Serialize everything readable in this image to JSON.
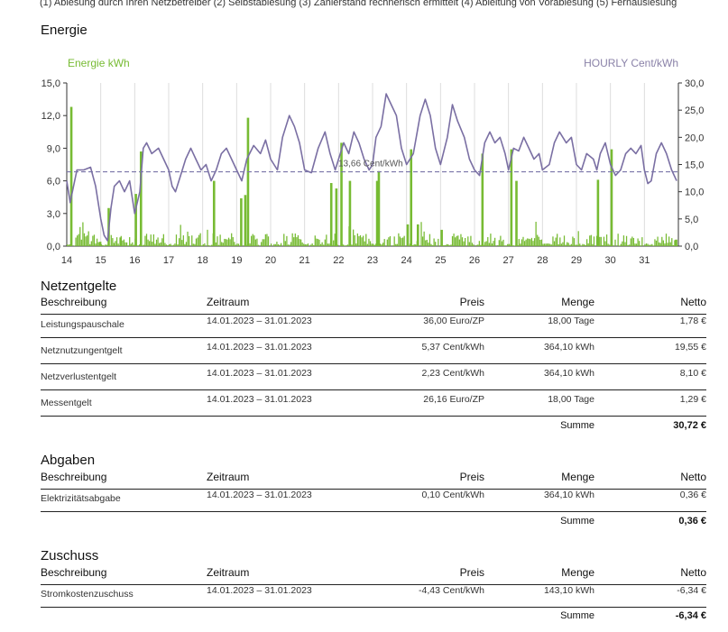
{
  "footnote": "(1) Ablesung durch Ihren Netzbetreiber (2) Selbstablesung (3) Zählerstand rechnerisch ermittelt (4) Ableitung von Vorablesung (5) Fernauslesung",
  "energy": {
    "title": "Energie"
  },
  "chart_data": {
    "type": "bar+line",
    "left_axis_label": "Energie kWh",
    "right_axis_label": "HOURLY Cent/kWh",
    "left_ticks": [
      "0,0",
      "3,0",
      "6,0",
      "9,0",
      "12,0",
      "15,0"
    ],
    "right_ticks": [
      "0,0",
      "5,0",
      "10,0",
      "15,0",
      "20,0",
      "25,0",
      "30,0"
    ],
    "ylim_left": [
      0,
      15
    ],
    "ylim_right": [
      0,
      30
    ],
    "x_labels": [
      "14",
      "15",
      "16",
      "17",
      "18",
      "19",
      "20",
      "21",
      "22",
      "23",
      "24",
      "25",
      "26",
      "27",
      "28",
      "29",
      "30",
      "31"
    ],
    "grid": "vertical",
    "average_price": 13.66,
    "average_label": "13,66 Cent/kWh",
    "colors": {
      "bars": "#77bb33",
      "line": "#7a6fa3",
      "average": "#7a75a8",
      "left_label": "#77bb33",
      "right_label": "#8a82a8"
    },
    "series": [
      {
        "name": "Energie kWh",
        "type": "bar",
        "unit": "kWh",
        "description": "hourly consumption, 14.01.–31.01.2023; most hours 0–2 kWh with daily spikes",
        "spikes": [
          [
            14.1,
            12.8
          ],
          [
            14.95,
            0.4
          ],
          [
            15.2,
            3.5
          ],
          [
            15.55,
            0.8
          ],
          [
            16.0,
            4.8
          ],
          [
            16.15,
            8.7
          ],
          [
            18.3,
            6.0
          ],
          [
            19.1,
            4.4
          ],
          [
            19.22,
            4.7
          ],
          [
            19.3,
            11.8
          ],
          [
            21.75,
            5.8
          ],
          [
            21.9,
            5.3
          ],
          [
            22.05,
            9.5
          ],
          [
            22.3,
            6.0
          ],
          [
            23.1,
            6.0
          ],
          [
            23.15,
            6.9
          ],
          [
            24.0,
            2.0
          ],
          [
            24.1,
            8.9
          ],
          [
            24.3,
            2.0
          ],
          [
            25.0,
            1.5
          ],
          [
            26.2,
            8.5
          ],
          [
            27.05,
            8.9
          ],
          [
            27.2,
            6.0
          ],
          [
            29.6,
            6.1
          ],
          [
            30.0,
            8.9
          ],
          [
            31.9,
            0.6
          ]
        ]
      },
      {
        "name": "HOURLY Cent/kWh",
        "type": "line",
        "unit": "Cent/kWh",
        "axis": "right",
        "points": [
          [
            14.0,
            12
          ],
          [
            14.1,
            8
          ],
          [
            14.2,
            11
          ],
          [
            14.3,
            14
          ],
          [
            14.5,
            14
          ],
          [
            14.7,
            14.5
          ],
          [
            14.85,
            11
          ],
          [
            15.0,
            5
          ],
          [
            15.1,
            2
          ],
          [
            15.2,
            1
          ],
          [
            15.3,
            7
          ],
          [
            15.4,
            11
          ],
          [
            15.55,
            12
          ],
          [
            15.7,
            10
          ],
          [
            15.85,
            12
          ],
          [
            16.0,
            6
          ],
          [
            16.15,
            10
          ],
          [
            16.25,
            18
          ],
          [
            16.35,
            19
          ],
          [
            16.5,
            17
          ],
          [
            16.7,
            18
          ],
          [
            16.85,
            16
          ],
          [
            17.0,
            14
          ],
          [
            17.1,
            11
          ],
          [
            17.2,
            10
          ],
          [
            17.35,
            13
          ],
          [
            17.5,
            16
          ],
          [
            17.65,
            18
          ],
          [
            17.8,
            16
          ],
          [
            17.95,
            14
          ],
          [
            18.1,
            15
          ],
          [
            18.25,
            12
          ],
          [
            18.4,
            14
          ],
          [
            18.55,
            17
          ],
          [
            18.7,
            18
          ],
          [
            18.85,
            16
          ],
          [
            19.0,
            14
          ],
          [
            19.15,
            12
          ],
          [
            19.3,
            16
          ],
          [
            19.5,
            18.5
          ],
          [
            19.7,
            17
          ],
          [
            19.85,
            19.5
          ],
          [
            20.0,
            16
          ],
          [
            20.2,
            14
          ],
          [
            20.35,
            20
          ],
          [
            20.55,
            24
          ],
          [
            20.7,
            22
          ],
          [
            20.85,
            19
          ],
          [
            21.0,
            14
          ],
          [
            21.2,
            13.5
          ],
          [
            21.4,
            18
          ],
          [
            21.6,
            21
          ],
          [
            21.75,
            17
          ],
          [
            21.9,
            14
          ],
          [
            22.0,
            16
          ],
          [
            22.15,
            19
          ],
          [
            22.3,
            17
          ],
          [
            22.45,
            21
          ],
          [
            22.6,
            19
          ],
          [
            22.75,
            16
          ],
          [
            22.9,
            14
          ],
          [
            23.0,
            15
          ],
          [
            23.1,
            20
          ],
          [
            23.25,
            22
          ],
          [
            23.4,
            28
          ],
          [
            23.55,
            26
          ],
          [
            23.7,
            24
          ],
          [
            23.85,
            18
          ],
          [
            24.0,
            15
          ],
          [
            24.2,
            17
          ],
          [
            24.4,
            24
          ],
          [
            24.55,
            27
          ],
          [
            24.7,
            24
          ],
          [
            24.85,
            18
          ],
          [
            25.0,
            15
          ],
          [
            25.2,
            20
          ],
          [
            25.35,
            26
          ],
          [
            25.5,
            23
          ],
          [
            25.7,
            20
          ],
          [
            25.85,
            16
          ],
          [
            26.0,
            14
          ],
          [
            26.15,
            13
          ],
          [
            26.3,
            19
          ],
          [
            26.45,
            21
          ],
          [
            26.6,
            19
          ],
          [
            26.75,
            20
          ],
          [
            26.9,
            17
          ],
          [
            27.0,
            14
          ],
          [
            27.15,
            18
          ],
          [
            27.3,
            17.5
          ],
          [
            27.45,
            20
          ],
          [
            27.6,
            18
          ],
          [
            27.75,
            16
          ],
          [
            27.9,
            17
          ],
          [
            28.0,
            14
          ],
          [
            28.2,
            15
          ],
          [
            28.35,
            19
          ],
          [
            28.5,
            21
          ],
          [
            28.7,
            19
          ],
          [
            28.85,
            20
          ],
          [
            29.0,
            15
          ],
          [
            29.15,
            14
          ],
          [
            29.3,
            17
          ],
          [
            29.5,
            16
          ],
          [
            29.6,
            14
          ],
          [
            29.7,
            17
          ],
          [
            29.85,
            19
          ],
          [
            30.0,
            15
          ],
          [
            30.15,
            13
          ],
          [
            30.3,
            14
          ],
          [
            30.45,
            17
          ],
          [
            30.6,
            18
          ],
          [
            30.75,
            17
          ],
          [
            30.9,
            18.5
          ],
          [
            31.0,
            14
          ],
          [
            31.1,
            11.5
          ],
          [
            31.2,
            12
          ],
          [
            31.35,
            17
          ],
          [
            31.5,
            19
          ],
          [
            31.65,
            17
          ],
          [
            31.8,
            14
          ],
          [
            31.95,
            12
          ]
        ]
      }
    ]
  },
  "columns": {
    "beschreibung": "Beschreibung",
    "zeitraum": "Zeitraum",
    "preis": "Preis",
    "menge": "Menge",
    "netto": "Netto",
    "summe": "Summe"
  },
  "netzentgelte": {
    "title": "Netzentgelte",
    "rows": [
      {
        "beschreibung": "Leistungspauschale",
        "zeitraum": "14.01.2023 – 31.01.2023",
        "preis": "36,00 Euro/ZP",
        "menge": "18,00 Tage",
        "netto": "1,78 €"
      },
      {
        "beschreibung": "Netznutzungentgelt",
        "zeitraum": "14.01.2023 – 31.01.2023",
        "preis": "5,37 Cent/kWh",
        "menge": "364,10 kWh",
        "netto": "19,55 €"
      },
      {
        "beschreibung": "Netzverlustentgelt",
        "zeitraum": "14.01.2023 – 31.01.2023",
        "preis": "2,23 Cent/kWh",
        "menge": "364,10 kWh",
        "netto": "8,10 €"
      },
      {
        "beschreibung": "Messentgelt",
        "zeitraum": "14.01.2023 – 31.01.2023",
        "preis": "26,16 Euro/ZP",
        "menge": "18,00 Tage",
        "netto": "1,29 €"
      }
    ],
    "summe": "30,72 €"
  },
  "abgaben": {
    "title": "Abgaben",
    "rows": [
      {
        "beschreibung": "Elektrizitätsabgabe",
        "zeitraum": "14.01.2023 – 31.01.2023",
        "preis": "0,10 Cent/kWh",
        "menge": "364,10 kWh",
        "netto": "0,36 €"
      }
    ],
    "summe": "0,36 €"
  },
  "zuschuss": {
    "title": "Zuschuss",
    "rows": [
      {
        "beschreibung": "Stromkostenzuschuss",
        "zeitraum": "14.01.2023 – 31.01.2023",
        "preis": "-4,43 Cent/kWh",
        "menge": "143,10 kWh",
        "netto": "-6,34 €"
      }
    ],
    "summe": "-6,34 €"
  }
}
